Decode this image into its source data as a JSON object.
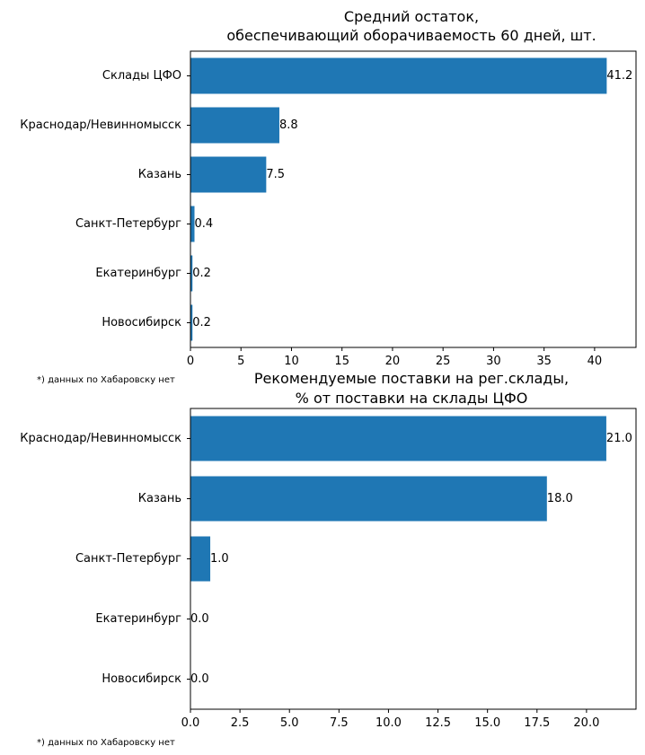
{
  "colors": {
    "bar": "#1f77b4",
    "axis": "#000000",
    "background": "#ffffff"
  },
  "chart_data": [
    {
      "type": "bar",
      "orientation": "horizontal",
      "title_lines": [
        "Средний остаток,",
        "обеспечивающий оборачиваемость 60 дней, шт."
      ],
      "categories": [
        "Склады ЦФО",
        "Краснодар/Невинномысск",
        "Казань",
        "Санкт-Петербург",
        "Екатеринбург",
        "Новосибирск"
      ],
      "values": [
        41.2,
        8.8,
        7.5,
        0.4,
        0.2,
        0.2
      ],
      "data_labels": [
        "41.2",
        "8.8",
        "7.5",
        "0.4",
        "0.2",
        "0.2"
      ],
      "xlim": [
        0,
        44.1
      ],
      "xticks": [
        0,
        5,
        10,
        15,
        20,
        25,
        30,
        35,
        40
      ],
      "xtick_labels": [
        "0",
        "5",
        "10",
        "15",
        "20",
        "25",
        "30",
        "35",
        "40"
      ],
      "grid": false,
      "footnote": "*) данных по Хабаровску нет"
    },
    {
      "type": "bar",
      "orientation": "horizontal",
      "title_lines": [
        "Рекомендуемые поставки на рег.склады,",
        "% от поставки на склады ЦФО"
      ],
      "categories": [
        "Краснодар/Невинномысск",
        "Казань",
        "Санкт-Петербург",
        "Екатеринбург",
        "Новосибирск"
      ],
      "values": [
        21.0,
        18.0,
        1.0,
        0.0,
        0.0
      ],
      "data_labels": [
        "21.0",
        "18.0",
        "1.0",
        "0.0",
        "0.0"
      ],
      "xlim": [
        0,
        22.5
      ],
      "xticks": [
        0,
        2.5,
        5,
        7.5,
        10,
        12.5,
        15,
        17.5,
        20
      ],
      "xtick_labels": [
        "0.0",
        "2.5",
        "5.0",
        "7.5",
        "10.0",
        "12.5",
        "15.0",
        "17.5",
        "20.0"
      ],
      "grid": false,
      "footnote": "*) данных по Хабаровску нет"
    }
  ]
}
